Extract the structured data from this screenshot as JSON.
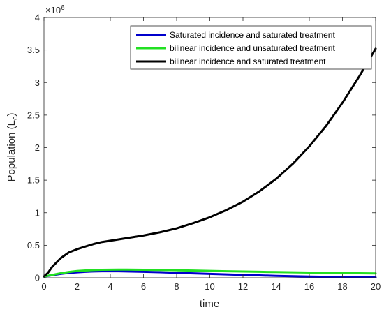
{
  "chart_data": {
    "type": "line",
    "title": "",
    "xlabel": "time",
    "ylabel": "Population (L",
    "ylabel_subscript": "c",
    "y_exponent_base": "×10",
    "y_exponent_power": "6",
    "xlim": [
      0,
      20
    ],
    "ylim": [
      0,
      4
    ],
    "y_scale": 1000000,
    "xticks": [
      0,
      2,
      4,
      6,
      8,
      10,
      12,
      14,
      16,
      18,
      20
    ],
    "yticks": [
      0,
      0.5,
      1,
      1.5,
      2,
      2.5,
      3,
      3.5,
      4
    ],
    "ytick_labels": [
      "0",
      "0.5",
      "1",
      "1.5",
      "2",
      "2.5",
      "3",
      "3.5",
      "4"
    ],
    "grid": false,
    "legend_position": "top-right",
    "series": [
      {
        "name": "Saturated incidence and saturated treatment",
        "color": "#0000cc",
        "x": [
          0,
          0.5,
          1,
          1.5,
          2,
          2.5,
          3,
          3.5,
          4,
          4.5,
          5,
          6,
          7,
          8,
          9,
          10,
          11,
          12,
          13,
          14,
          15,
          16,
          17,
          18,
          19,
          20
        ],
        "y": [
          0.02,
          0.04,
          0.06,
          0.075,
          0.085,
          0.093,
          0.098,
          0.1,
          0.101,
          0.1,
          0.098,
          0.093,
          0.086,
          0.077,
          0.069,
          0.06,
          0.052,
          0.044,
          0.037,
          0.03,
          0.024,
          0.019,
          0.015,
          0.011,
          0.008,
          0.005
        ]
      },
      {
        "name": "bilinear incidence and unsaturated treatment",
        "color": "#22e022",
        "x": [
          0,
          0.5,
          1,
          1.5,
          2,
          2.5,
          3,
          3.5,
          4,
          4.5,
          5,
          6,
          7,
          8,
          9,
          10,
          11,
          12,
          13,
          14,
          15,
          16,
          17,
          18,
          19,
          20
        ],
        "y": [
          0.02,
          0.045,
          0.07,
          0.09,
          0.104,
          0.113,
          0.119,
          0.123,
          0.125,
          0.126,
          0.126,
          0.124,
          0.12,
          0.116,
          0.111,
          0.106,
          0.101,
          0.096,
          0.092,
          0.088,
          0.084,
          0.08,
          0.077,
          0.073,
          0.07,
          0.067
        ]
      },
      {
        "name": "bilinear incidence and saturated treatment",
        "color": "#000000",
        "x": [
          0,
          0.25,
          0.5,
          1,
          1.5,
          2,
          2.5,
          3,
          3.5,
          4,
          5,
          6,
          7,
          8,
          9,
          10,
          11,
          12,
          13,
          14,
          15,
          16,
          17,
          18,
          19,
          20
        ],
        "y": [
          0.02,
          0.08,
          0.17,
          0.3,
          0.39,
          0.44,
          0.48,
          0.52,
          0.55,
          0.57,
          0.61,
          0.65,
          0.7,
          0.76,
          0.84,
          0.93,
          1.04,
          1.17,
          1.33,
          1.52,
          1.75,
          2.02,
          2.33,
          2.69,
          3.09,
          3.52
        ]
      }
    ]
  }
}
